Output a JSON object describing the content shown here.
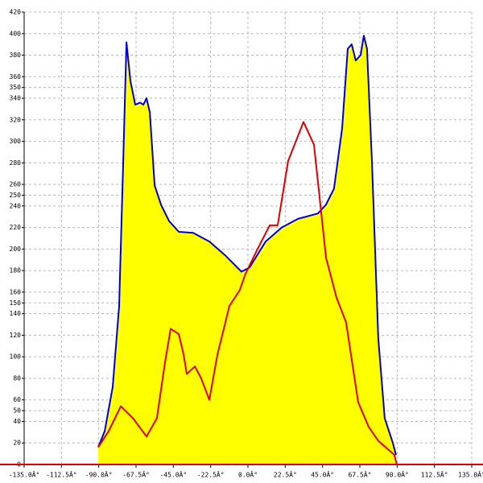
{
  "chart_data": {
    "type": "line",
    "xlim": [
      -135,
      135
    ],
    "ylim": [
      0,
      420
    ],
    "xticks": [
      {
        "value": -135,
        "label": "-135.0Â°"
      },
      {
        "value": -112.5,
        "label": "-112.5Â°"
      },
      {
        "value": -90,
        "label": "-90.0Â°"
      },
      {
        "value": -67.5,
        "label": "-67.5Â°"
      },
      {
        "value": -45,
        "label": "-45.0Â°"
      },
      {
        "value": -22.5,
        "label": "-22.5Â°"
      },
      {
        "value": 0,
        "label": "0.0Â°"
      },
      {
        "value": 22.5,
        "label": "22.5Â°"
      },
      {
        "value": 45,
        "label": "45.0Â°"
      },
      {
        "value": 67.5,
        "label": "67.5Â°"
      },
      {
        "value": 90,
        "label": "90.0Â°"
      },
      {
        "value": 112.5,
        "label": "112.5Â°"
      },
      {
        "value": 135,
        "label": "135.0Â°"
      }
    ],
    "yticks": [
      0,
      20,
      40,
      50,
      60,
      80,
      100,
      120,
      140,
      150,
      160,
      180,
      200,
      220,
      240,
      250,
      260,
      280,
      300,
      320,
      340,
      350,
      360,
      380,
      400,
      420
    ],
    "grid": true,
    "series": [
      {
        "color": "#0000cc",
        "fill": "#ffff00",
        "x": [
          -90.3,
          -86.4,
          -81.6,
          -77.7,
          -75.2,
          -73.3,
          -70.9,
          -68,
          -65,
          -63.1,
          -61.2,
          -59.2,
          -56.3,
          -52.4,
          -47.6,
          -41.7,
          -33,
          -23.3,
          -13.6,
          -3.9,
          1,
          10.7,
          20.4,
          30.1,
          42.2,
          47,
          51.9,
          56.8,
          60.2,
          62.6,
          65,
          68,
          69.9,
          71.8,
          74.8,
          78.6,
          82.5,
          87.4,
          89.3
        ],
        "values": [
          16,
          31,
          72,
          147,
          282,
          392,
          356,
          334,
          336,
          334,
          340,
          327,
          259,
          241,
          226,
          216,
          215,
          207,
          194,
          179,
          183,
          207,
          220,
          228,
          233,
          241,
          256,
          312,
          386,
          390,
          375,
          380,
          398,
          386,
          282,
          117,
          43,
          20,
          9
        ]
      },
      {
        "color": "#dd0000",
        "x": [
          -90.3,
          -84,
          -76.7,
          -69.4,
          -61.2,
          -54.9,
          -50,
          -46.6,
          -41.7,
          -38.8,
          -36.9,
          -32,
          -28.2,
          -23.3,
          -18.4,
          -11.2,
          -4.9,
          -1.5,
          5.8,
          13.1,
          17.9,
          24.3,
          33.5,
          39.8,
          47.1,
          53.4,
          59.2,
          66.5,
          72.8,
          78.6,
          88.3,
          89.8
        ],
        "values": [
          16,
          31,
          54,
          43,
          26,
          43,
          95,
          126,
          121,
          102,
          84,
          91,
          80,
          60,
          102,
          147,
          162,
          177,
          200,
          222,
          222,
          282,
          318,
          297,
          192,
          155,
          132,
          58,
          35,
          22,
          9,
          0
        ]
      }
    ]
  }
}
